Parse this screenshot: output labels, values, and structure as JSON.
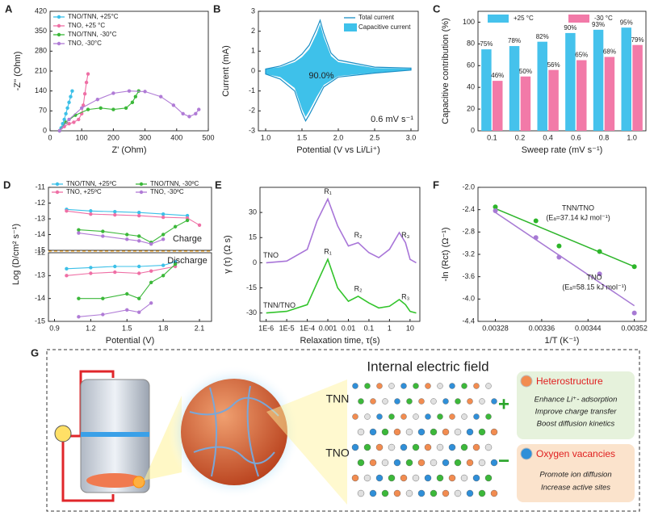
{
  "chart_data": [
    {
      "panel": "A",
      "type": "line",
      "markers": true,
      "xlabel": "Z' (Ohm)",
      "ylabel": "-Z'' (Ohm)",
      "xlim": [
        0,
        500
      ],
      "xticks": [
        0,
        100,
        200,
        300,
        400,
        500
      ],
      "ylim": [
        0,
        420
      ],
      "yticks": [
        0,
        70,
        140,
        210,
        280,
        350,
        420
      ],
      "legend": "upper left",
      "series": [
        {
          "name": "TNO/TNN, +25°C",
          "color": "#3cc0e8",
          "x": [
            30,
            35,
            40,
            45,
            50,
            55,
            60,
            65,
            70
          ],
          "values": [
            0,
            10,
            25,
            40,
            60,
            80,
            100,
            120,
            140
          ]
        },
        {
          "name": "TNO, +25 °C",
          "color": "#ef6fa5",
          "x": [
            30,
            45,
            60,
            75,
            90,
            100,
            105,
            110,
            115,
            120
          ],
          "values": [
            0,
            15,
            25,
            30,
            40,
            60,
            90,
            130,
            170,
            200
          ]
        },
        {
          "name": "TNO/TNN, -30°C",
          "color": "#3cb83a",
          "x": [
            30,
            50,
            80,
            120,
            160,
            200,
            240,
            260,
            270,
            280
          ],
          "values": [
            0,
            30,
            55,
            75,
            80,
            75,
            80,
            100,
            120,
            140
          ]
        },
        {
          "name": "TNO, -30°C",
          "color": "#b07bd6",
          "x": [
            30,
            60,
            100,
            150,
            200,
            250,
            300,
            350,
            390,
            420,
            440,
            460,
            470
          ],
          "values": [
            0,
            40,
            80,
            110,
            132,
            140,
            138,
            120,
            90,
            60,
            50,
            60,
            75
          ]
        }
      ]
    },
    {
      "panel": "B",
      "type": "cv",
      "xlabel": "Potential (V vs Li/Li⁺)",
      "ylabel": "Current (mA)",
      "xlim": [
        0.9,
        3.1
      ],
      "xticks": [
        {
          "value": 1,
          "label": "1.0"
        },
        1.5,
        {
          "value": 2,
          "label": "2.0"
        },
        2.5,
        {
          "value": 3,
          "label": "3.0"
        }
      ],
      "ylim": [
        -3,
        3
      ],
      "yticks": [
        -3,
        -2,
        -1,
        0,
        1,
        2,
        3
      ],
      "legend": "upper right",
      "annotations": [
        "90.0%",
        "0.6 mV s⁻¹"
      ],
      "series": [
        {
          "name": "Total current",
          "color": "#1b8fc6",
          "filled": false,
          "x": [
            1.0,
            1.2,
            1.4,
            1.5,
            1.6,
            1.7,
            1.75,
            1.8,
            1.9,
            2.0,
            2.5,
            3.0,
            3.0,
            2.5,
            2.0,
            1.8,
            1.7,
            1.6,
            1.55,
            1.5,
            1.4,
            1.2,
            1.0
          ],
          "values": [
            0.1,
            0.25,
            0.55,
            0.85,
            1.3,
            2.1,
            2.55,
            1.9,
            0.9,
            0.55,
            0.2,
            0.15,
            0.05,
            -0.1,
            -0.3,
            -0.8,
            -1.5,
            -2.2,
            -2.5,
            -2.1,
            -1.0,
            -0.4,
            -0.15
          ]
        },
        {
          "name": "Capacitive current",
          "color": "#3ec1ea",
          "filled": true,
          "x": [
            1.0,
            1.2,
            1.4,
            1.5,
            1.6,
            1.7,
            1.75,
            1.8,
            1.9,
            2.0,
            2.5,
            3.0,
            3.0,
            2.5,
            2.0,
            1.8,
            1.7,
            1.6,
            1.55,
            1.5,
            1.4,
            1.2,
            1.0
          ],
          "values": [
            0.1,
            0.2,
            0.45,
            0.7,
            1.1,
            1.85,
            2.35,
            1.7,
            0.75,
            0.45,
            0.15,
            0.12,
            0.05,
            -0.08,
            -0.25,
            -0.7,
            -1.3,
            -2.0,
            -2.3,
            -1.9,
            -0.85,
            -0.3,
            -0.15
          ]
        }
      ]
    },
    {
      "panel": "C",
      "type": "bar",
      "xlabel": "Sweep rate (mV s⁻¹)",
      "ylabel": "Capacitive contribution (%)",
      "categories": [
        "0.1",
        "0.2",
        "0.4",
        "0.6",
        "0.8",
        "1.0"
      ],
      "ylim": [
        0,
        110
      ],
      "yticks": [
        0,
        20,
        40,
        60,
        80,
        100
      ],
      "legend": "upper center",
      "series": [
        {
          "name": "+25 °C",
          "color": "#45c2ec",
          "values": [
            75,
            78,
            82,
            90,
            93,
            95
          ],
          "value_labels": [
            "75%",
            "78%",
            "82%",
            "90%",
            "93%",
            "95%"
          ]
        },
        {
          "name": "-30 °C",
          "color": "#f27aa8",
          "values": [
            46,
            50,
            56,
            65,
            68,
            79
          ],
          "value_labels": [
            "46%",
            "50%",
            "56%",
            "65%",
            "68%",
            "79%"
          ]
        }
      ]
    },
    {
      "panel": "D",
      "type": "line",
      "markers": true,
      "ylabel": "Log (D/cm² s⁻¹)",
      "xlim": [
        0.85,
        2.2
      ],
      "ylim": [
        -15,
        -11
      ],
      "yticks": [
        -11,
        -12,
        -13,
        -14,
        -15
      ],
      "legend": "upper left",
      "annotations": [
        "Charge"
      ],
      "series": [
        {
          "name": "TNO/TNN, +25ºC",
          "color": "#3cc0e8",
          "x": [
            1.0,
            1.2,
            1.4,
            1.6,
            1.8,
            2.0
          ],
          "values": [
            -12.4,
            -12.5,
            -12.55,
            -12.6,
            -12.7,
            -12.8
          ]
        },
        {
          "name": "TNO, +25ºC",
          "color": "#ef6fa5",
          "x": [
            1.0,
            1.2,
            1.4,
            1.6,
            1.8,
            2.0,
            2.1
          ],
          "values": [
            -12.5,
            -12.7,
            -12.75,
            -12.8,
            -12.9,
            -12.95,
            -13.4
          ]
        },
        {
          "name": "TNO/TNN, -30ºC",
          "color": "#3cb83a",
          "x": [
            1.1,
            1.3,
            1.5,
            1.6,
            1.7,
            1.8,
            1.9,
            2.0
          ],
          "values": [
            -13.7,
            -13.8,
            -14.0,
            -14.1,
            -14.5,
            -14.0,
            -13.5,
            -13.1
          ]
        },
        {
          "name": "TNO, -30ºC",
          "color": "#b07bd6",
          "x": [
            1.1,
            1.3,
            1.5,
            1.6,
            1.7,
            1.8
          ],
          "values": [
            -13.9,
            -14.1,
            -14.3,
            -14.4,
            -14.6,
            -14.3
          ]
        }
      ]
    },
    {
      "type": "line",
      "markers": true,
      "xlabel": "Potential (V)",
      "xlim": [
        0.85,
        2.2
      ],
      "xticks": [
        0.9,
        1.2,
        1.5,
        1.8,
        2.1
      ],
      "ylim": [
        -15,
        -12
      ],
      "yticks": [
        -12,
        -13,
        -14,
        -15
      ],
      "annotations": [
        "Discharge"
      ],
      "series": [
        {
          "color": "#3cc0e8",
          "x": [
            1.0,
            1.2,
            1.4,
            1.6,
            1.8,
            1.9
          ],
          "values": [
            -12.7,
            -12.65,
            -12.6,
            -12.6,
            -12.55,
            -12.4
          ]
        },
        {
          "color": "#ef6fa5",
          "x": [
            1.0,
            1.2,
            1.4,
            1.6,
            1.7,
            1.9
          ],
          "values": [
            -13.0,
            -12.9,
            -12.85,
            -12.9,
            -12.8,
            -12.6
          ]
        },
        {
          "color": "#3cb83a",
          "x": [
            1.1,
            1.3,
            1.5,
            1.6,
            1.7,
            1.8,
            1.9
          ],
          "values": [
            -14.0,
            -14.0,
            -13.8,
            -14.0,
            -13.3,
            -13.0,
            -12.5
          ]
        },
        {
          "color": "#b07bd6",
          "x": [
            1.1,
            1.3,
            1.5,
            1.6,
            1.7
          ],
          "values": [
            -14.8,
            -14.7,
            -14.5,
            -14.6,
            -14.2
          ]
        }
      ]
    },
    {
      "panel": "E",
      "type": "line",
      "xscale": "log",
      "xlabel": "Relaxation time, τ(s)",
      "ylabel": "γ (τ) (Ω s)",
      "xlim": [
        5e-07,
        30
      ],
      "xticks": [
        {
          "value": 1e-06,
          "label": "1E-6"
        },
        {
          "value": 1e-05,
          "label": "1E-5"
        },
        {
          "value": 0.0001,
          "label": "1E-4"
        },
        0.001,
        0.01,
        0.1,
        1,
        10
      ],
      "ylim": [
        -35,
        45
      ],
      "yticks": [
        -30,
        -15,
        0,
        15,
        30
      ],
      "legend": "inline",
      "x": [
        1e-06,
        1e-05,
        0.0001,
        0.0003,
        0.001,
        0.003,
        0.01,
        0.03,
        0.1,
        0.3,
        1,
        3,
        6,
        10,
        20
      ],
      "series": [
        {
          "name": "TNO",
          "color": "#a875d8",
          "values": [
            0,
            1,
            8,
            25,
            38,
            22,
            10,
            12,
            6,
            3,
            8,
            18,
            12,
            2,
            0
          ],
          "peak_labels": [
            "R₁",
            "R₂",
            "R₃"
          ]
        },
        {
          "name": "TNN/TNO",
          "color": "#33c42c",
          "values": [
            -30,
            -29,
            -25,
            -12,
            2,
            -15,
            -23,
            -20,
            -24,
            -27,
            -26,
            -22,
            -25,
            -29,
            -30
          ],
          "peak_labels": [
            "R₁",
            "R₂",
            "R₃"
          ]
        }
      ]
    },
    {
      "panel": "F",
      "type": "scatter",
      "xlabel": "1/T (K⁻¹)",
      "ylabel": "-ln (Rct) (Ω⁻¹)",
      "xlim": [
        0.00325,
        0.00354
      ],
      "xticks": [
        0.00328,
        0.00336,
        0.00344,
        0.00352
      ],
      "ylim": [
        -4.4,
        -2.0
      ],
      "yticks": [
        {
          "value": -2,
          "label": "-2.0"
        },
        -2.4,
        -2.8,
        -3.2,
        -3.6,
        {
          "value": -4,
          "label": "-4.0"
        },
        -4.4
      ],
      "fit_x": [
        0.00328,
        0.00352
      ],
      "series": [
        {
          "name": "TNN/TNO",
          "energy": "(Eₐ=37.14 kJ mol⁻¹)",
          "color": "#2db52a",
          "x": [
            0.00328,
            0.00335,
            0.00339,
            0.00346,
            0.00352
          ],
          "values": [
            -2.35,
            -2.6,
            -3.05,
            -3.15,
            -3.42
          ],
          "fit": [
            -2.38,
            -3.42
          ]
        },
        {
          "name": "TNO",
          "energy": "(Eₐ=58.15 kJ mol⁻¹)",
          "color": "#a77ad4",
          "x": [
            0.00328,
            0.00335,
            0.00339,
            0.00346,
            0.00352
          ],
          "values": [
            -2.42,
            -2.9,
            -3.25,
            -3.55,
            -4.25
          ],
          "fit": [
            -2.45,
            -4.12
          ]
        }
      ]
    }
  ],
  "schematic": {
    "panel": "G",
    "title": "Internal electric field",
    "layers": [
      "TNN",
      "TNO"
    ],
    "features": [
      {
        "sign": "+",
        "title": "Heterostructure",
        "items": [
          "Enhance Li⁺- adsorption",
          "Improve charge transfer",
          "Boost diffusion kinetics"
        ]
      },
      {
        "sign": "−",
        "title": "Oxygen vacancies",
        "items": [
          "Promote ion diffusion",
          "Increase active sites"
        ]
      }
    ]
  }
}
